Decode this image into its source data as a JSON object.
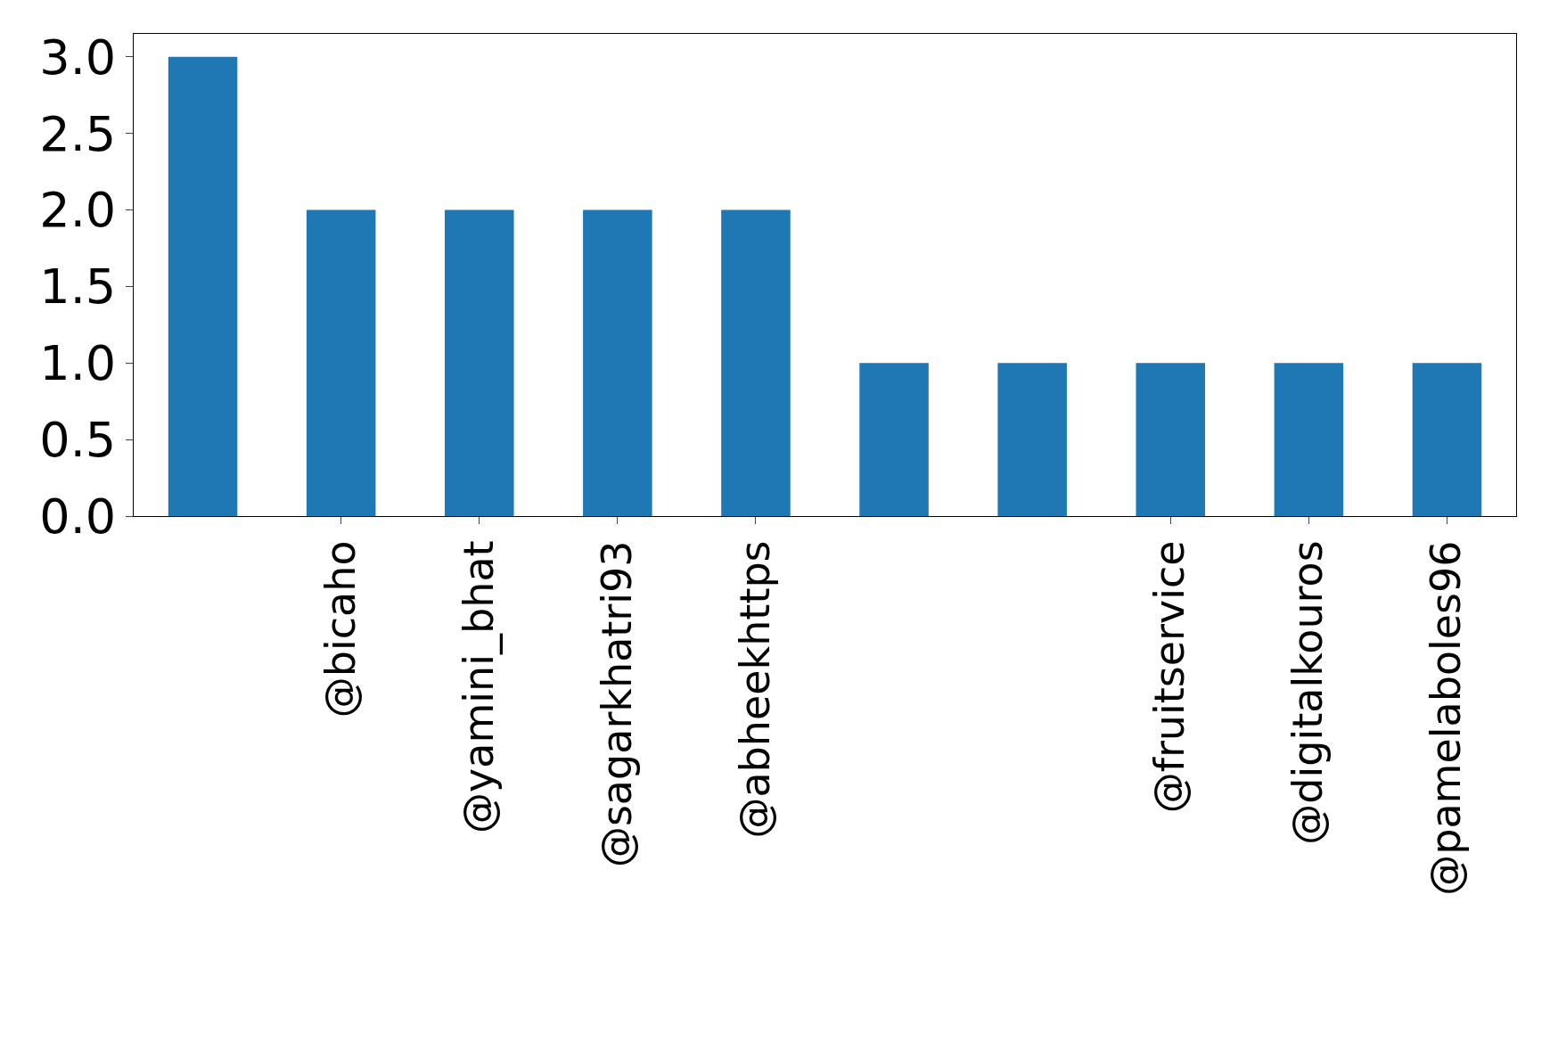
{
  "chart_data": {
    "type": "bar",
    "categories": [
      null,
      "@bicaho",
      "@yamini_bhat",
      "@sagarkhatri93",
      "@abheekhttps",
      null,
      null,
      "@fruitservice",
      "@digitalkouros",
      "@pamelaboles96"
    ],
    "values": [
      3,
      2,
      2,
      2,
      2,
      1,
      1,
      1,
      1,
      1
    ],
    "color": "#1f77b4",
    "ylim": [
      0,
      3.15
    ],
    "yticks": [
      {
        "value": 0,
        "label": "0.0"
      },
      {
        "value": 0.5,
        "label": "0.5"
      },
      {
        "value": 1,
        "label": "1.0"
      },
      {
        "value": 1.5,
        "label": "1.5"
      },
      {
        "value": 2,
        "label": "2.0"
      },
      {
        "value": 2.5,
        "label": "2.5"
      },
      {
        "value": 3,
        "label": "3.0"
      }
    ],
    "orientation": "vertical"
  }
}
